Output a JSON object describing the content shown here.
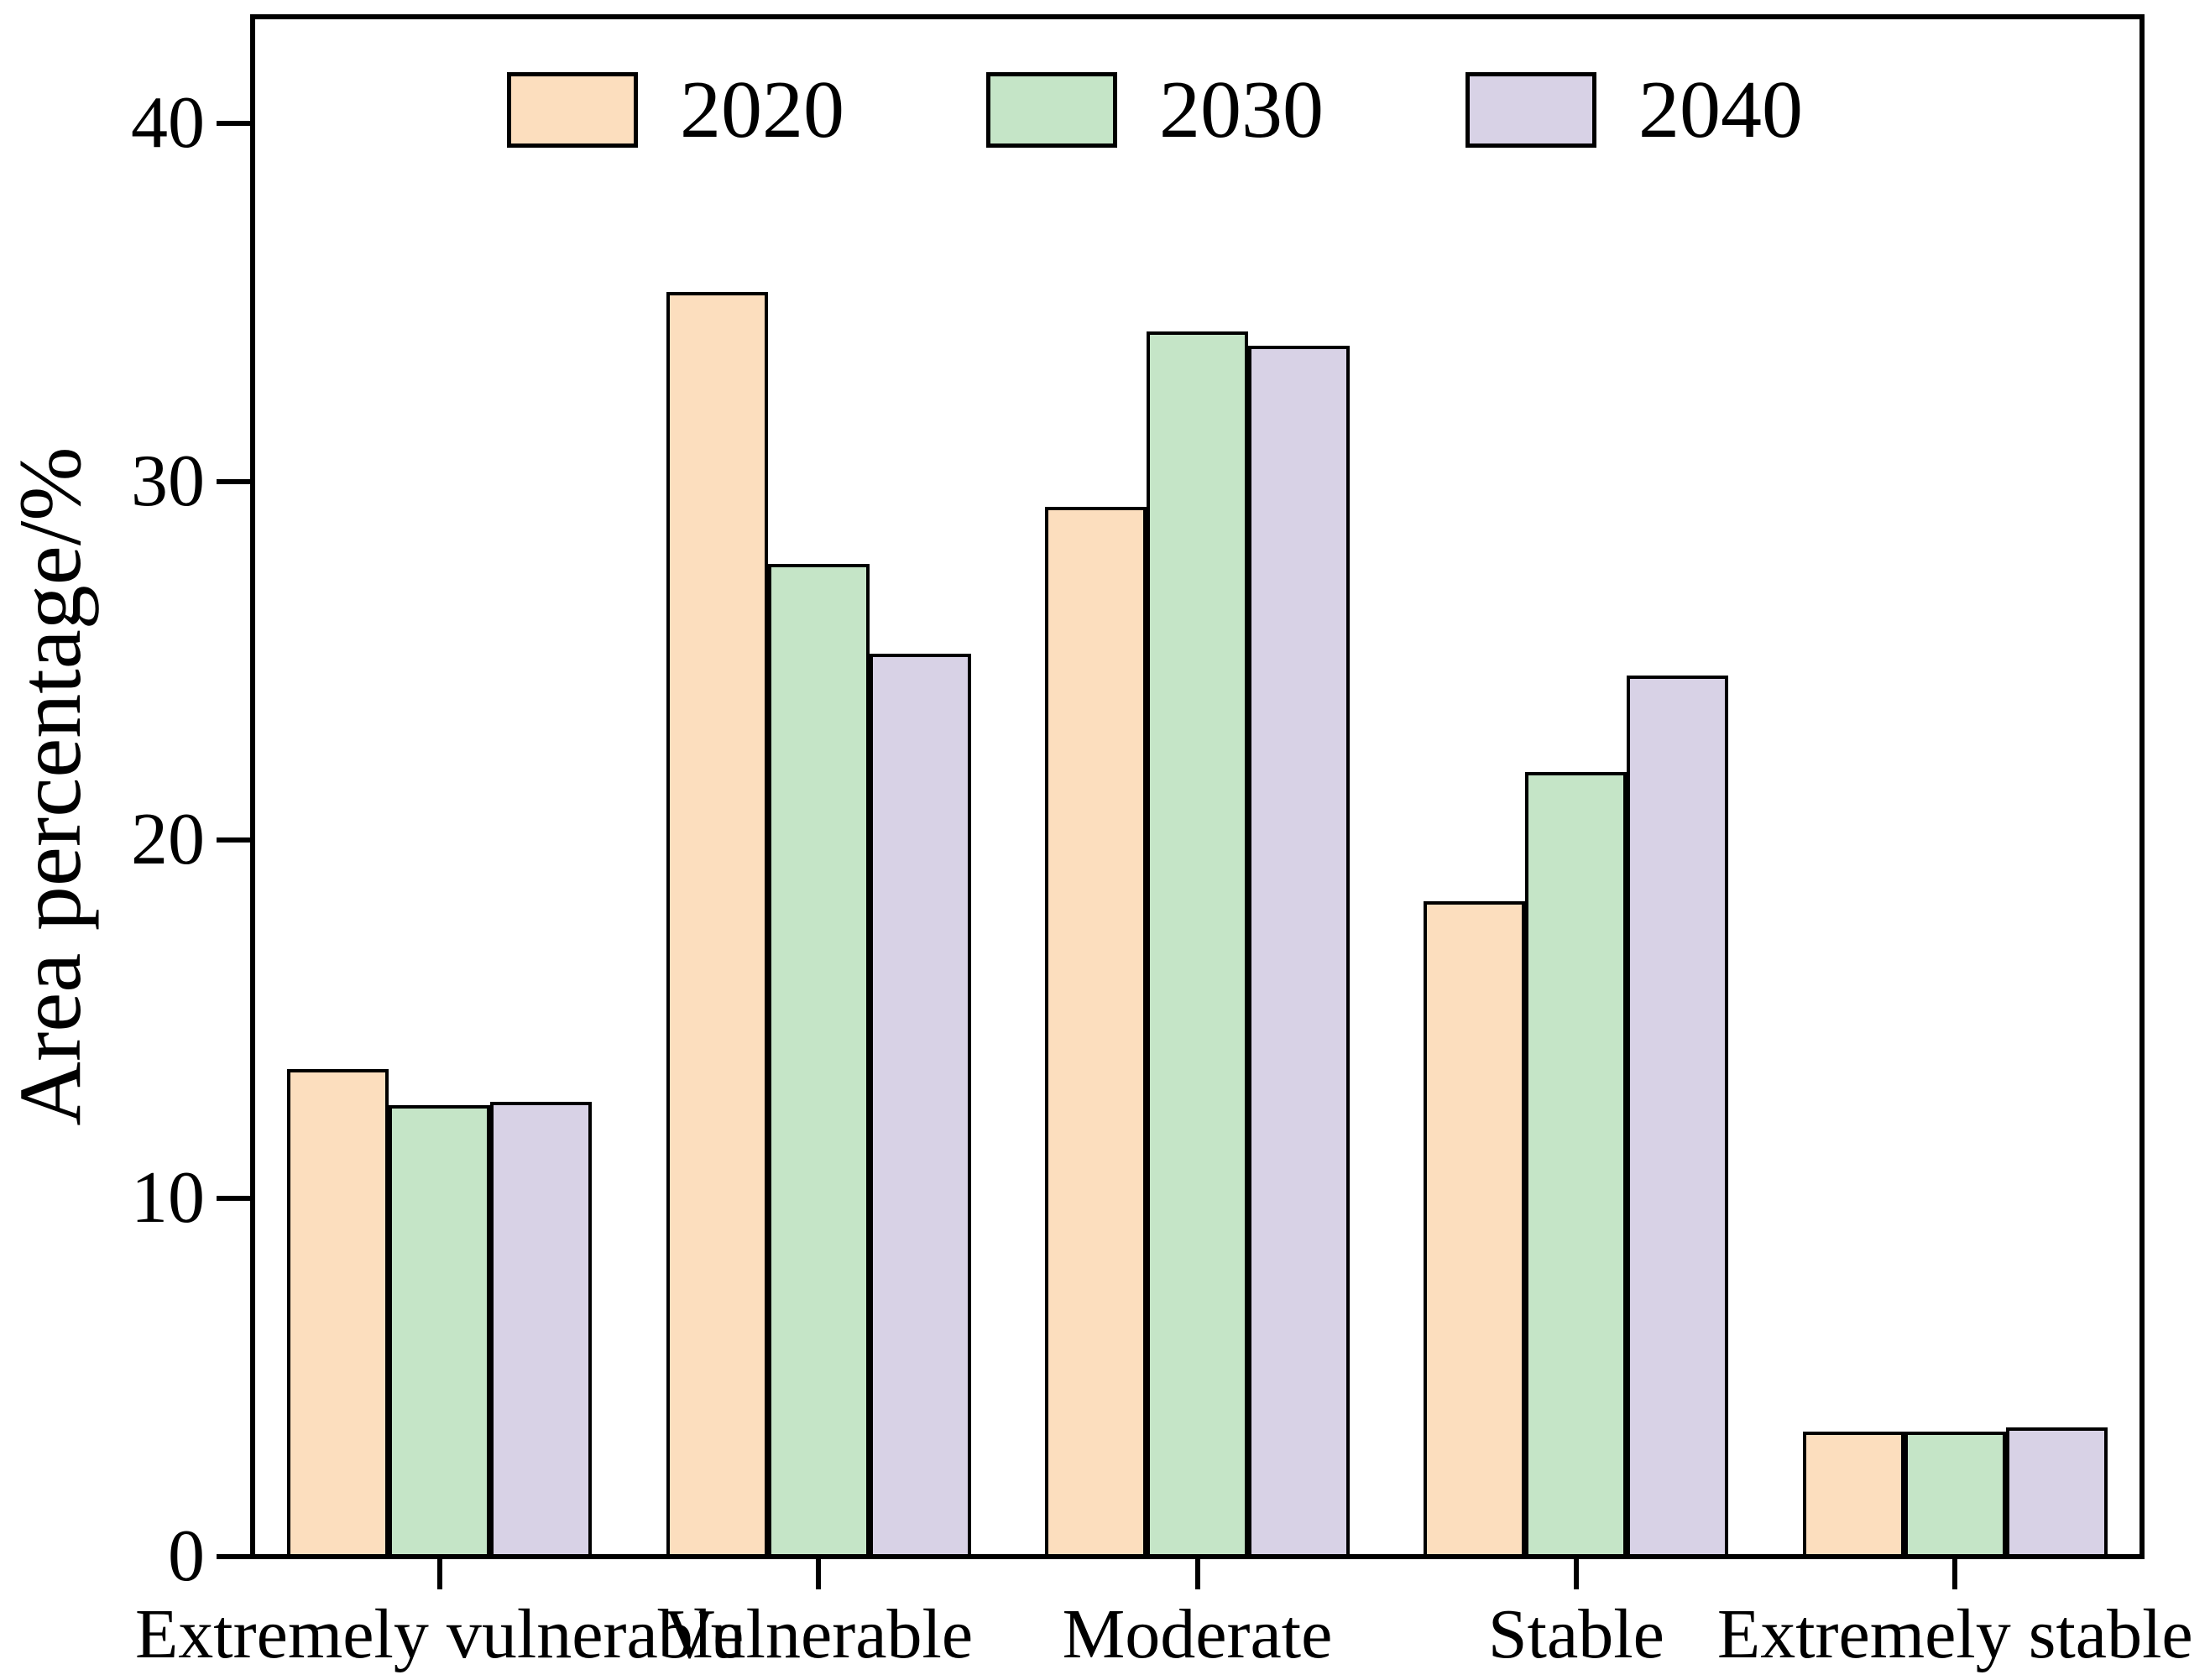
{
  "chart_data": {
    "type": "bar",
    "title": "",
    "xlabel": "",
    "ylabel": "Area percentage/%",
    "ylim": [
      0,
      43
    ],
    "yticks": [
      0,
      10,
      20,
      30,
      40
    ],
    "grid": false,
    "legend_position": "top-inside",
    "bar_edge_color": "#000000",
    "background_color": "#ffffff",
    "categories": [
      "Extremely vulnerable",
      "Vulnerable",
      "Moderate",
      "Stable",
      "Extremely stable"
    ],
    "series": [
      {
        "name": "2020",
        "color": "#FCDEBE",
        "values": [
          13.6,
          35.3,
          29.3,
          18.3,
          3.5
        ]
      },
      {
        "name": "2030",
        "color": "#C5E5C7",
        "values": [
          12.6,
          27.7,
          34.2,
          21.9,
          3.5
        ]
      },
      {
        "name": "2040",
        "color": "#D8D2E6",
        "values": [
          12.7,
          25.2,
          33.8,
          24.6,
          3.6
        ]
      }
    ]
  }
}
